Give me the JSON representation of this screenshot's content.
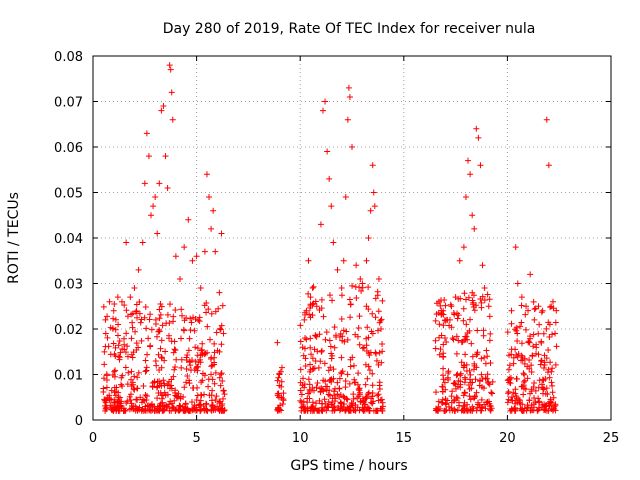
{
  "chart_data": {
    "type": "scatter",
    "title": "Day 280 of 2019, Rate Of TEC Index for receiver nula",
    "xlabel": "GPS time / hours",
    "ylabel": "ROTI / TECUs",
    "xlim": [
      0,
      25
    ],
    "ylim": [
      0,
      0.08
    ],
    "xticks": [
      0,
      5,
      10,
      15,
      20,
      25
    ],
    "yticks": [
      0,
      0.01,
      0.02,
      0.03,
      0.04,
      0.05,
      0.06,
      0.07,
      0.08
    ],
    "xtick_labels": [
      "0",
      "5",
      "10",
      "15",
      "20",
      "25"
    ],
    "ytick_labels": [
      "0",
      "0.01",
      "0.02",
      "0.03",
      "0.04",
      "0.05",
      "0.06",
      "0.07",
      "0.08"
    ],
    "grid": true,
    "marker": "+",
    "color": "#ff0000",
    "series": [
      {
        "values": [
          [
            0.6,
            0.022
          ],
          [
            0.8,
            0.026
          ],
          [
            1.0,
            0.024
          ],
          [
            1.2,
            0.027
          ],
          [
            1.4,
            0.026
          ],
          [
            1.6,
            0.039
          ],
          [
            1.8,
            0.027
          ],
          [
            2.0,
            0.029
          ],
          [
            2.2,
            0.033
          ],
          [
            2.4,
            0.039
          ],
          [
            2.5,
            0.052
          ],
          [
            2.6,
            0.063
          ],
          [
            2.7,
            0.058
          ],
          [
            2.8,
            0.045
          ],
          [
            2.9,
            0.047
          ],
          [
            3.0,
            0.049
          ],
          [
            3.1,
            0.041
          ],
          [
            3.2,
            0.052
          ],
          [
            3.3,
            0.068
          ],
          [
            3.4,
            0.069
          ],
          [
            3.5,
            0.058
          ],
          [
            3.6,
            0.051
          ],
          [
            3.7,
            0.078
          ],
          [
            3.75,
            0.077
          ],
          [
            3.8,
            0.072
          ],
          [
            3.85,
            0.066
          ],
          [
            4.0,
            0.036
          ],
          [
            4.2,
            0.031
          ],
          [
            4.4,
            0.038
          ],
          [
            4.6,
            0.044
          ],
          [
            4.8,
            0.035
          ],
          [
            5.0,
            0.036
          ],
          [
            5.2,
            0.029
          ],
          [
            5.4,
            0.037
          ],
          [
            5.5,
            0.054
          ],
          [
            5.6,
            0.049
          ],
          [
            5.7,
            0.042
          ],
          [
            5.8,
            0.046
          ],
          [
            5.9,
            0.037
          ],
          [
            6.1,
            0.028
          ],
          [
            6.2,
            0.041
          ],
          [
            6.3,
            0.019
          ],
          [
            8.9,
            0.017
          ],
          [
            9.0,
            0.01
          ],
          [
            9.1,
            0.005
          ],
          [
            10.2,
            0.022
          ],
          [
            10.3,
            0.024
          ],
          [
            10.4,
            0.035
          ],
          [
            10.5,
            0.027
          ],
          [
            10.6,
            0.029
          ],
          [
            10.8,
            0.025
          ],
          [
            11.0,
            0.043
          ],
          [
            11.1,
            0.068
          ],
          [
            11.2,
            0.07
          ],
          [
            11.3,
            0.059
          ],
          [
            11.4,
            0.053
          ],
          [
            11.5,
            0.047
          ],
          [
            11.6,
            0.039
          ],
          [
            11.8,
            0.033
          ],
          [
            12.0,
            0.029
          ],
          [
            12.1,
            0.035
          ],
          [
            12.2,
            0.049
          ],
          [
            12.3,
            0.066
          ],
          [
            12.35,
            0.073
          ],
          [
            12.4,
            0.071
          ],
          [
            12.5,
            0.06
          ],
          [
            12.7,
            0.034
          ],
          [
            12.9,
            0.031
          ],
          [
            13.0,
            0.03
          ],
          [
            13.2,
            0.035
          ],
          [
            13.3,
            0.04
          ],
          [
            13.4,
            0.046
          ],
          [
            13.5,
            0.056
          ],
          [
            13.55,
            0.05
          ],
          [
            13.6,
            0.047
          ],
          [
            13.8,
            0.031
          ],
          [
            13.9,
            0.02
          ],
          [
            16.7,
            0.026
          ],
          [
            16.9,
            0.024
          ],
          [
            17.1,
            0.022
          ],
          [
            17.3,
            0.025
          ],
          [
            17.5,
            0.027
          ],
          [
            17.7,
            0.035
          ],
          [
            17.9,
            0.038
          ],
          [
            18.0,
            0.049
          ],
          [
            18.1,
            0.057
          ],
          [
            18.2,
            0.054
          ],
          [
            18.3,
            0.045
          ],
          [
            18.4,
            0.042
          ],
          [
            18.5,
            0.064
          ],
          [
            18.6,
            0.062
          ],
          [
            18.7,
            0.056
          ],
          [
            18.8,
            0.034
          ],
          [
            18.9,
            0.029
          ],
          [
            19.1,
            0.025
          ],
          [
            20.2,
            0.024
          ],
          [
            20.4,
            0.038
          ],
          [
            20.5,
            0.03
          ],
          [
            20.7,
            0.027
          ],
          [
            20.9,
            0.025
          ],
          [
            21.1,
            0.032
          ],
          [
            21.3,
            0.022
          ],
          [
            21.5,
            0.025
          ],
          [
            21.7,
            0.024
          ],
          [
            21.9,
            0.066
          ],
          [
            22.0,
            0.056
          ],
          [
            22.2,
            0.026
          ],
          [
            22.3,
            0.019
          ]
        ]
      }
    ]
  }
}
